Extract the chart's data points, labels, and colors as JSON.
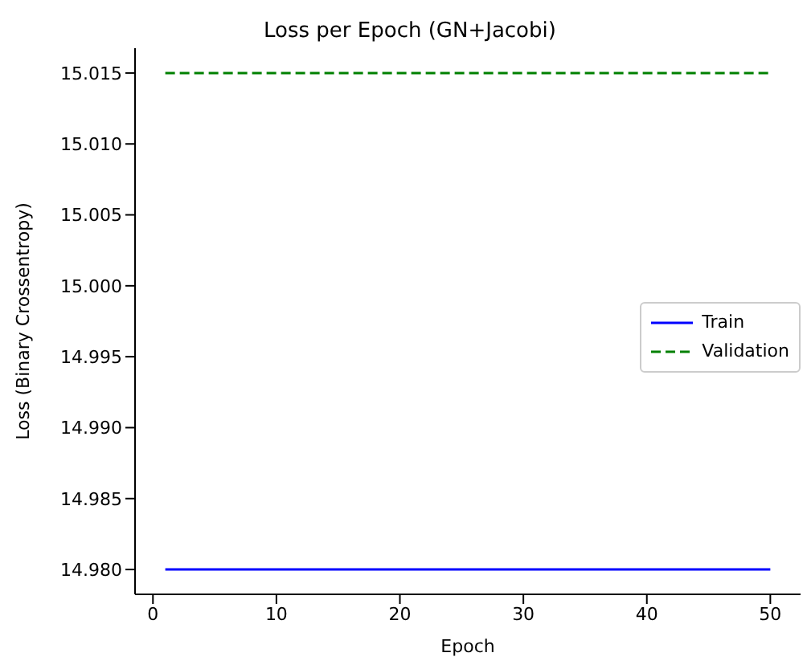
{
  "chart_data": {
    "type": "line",
    "title": "Loss per Epoch (GN+Jacobi)",
    "xlabel": "Epoch",
    "ylabel": "Loss (Binary Crossentropy)",
    "x": [
      1,
      50
    ],
    "series": [
      {
        "name": "Train",
        "color": "#0000ff",
        "values": [
          14.98,
          14.98
        ],
        "line_style": "solid"
      },
      {
        "name": "Validation",
        "color": "#008000",
        "values": [
          15.015,
          15.015
        ],
        "line_style": "dashed"
      }
    ],
    "xlim": [
      -1.45,
      52.45
    ],
    "xticks": [
      0,
      10,
      20,
      30,
      40,
      50
    ],
    "ylim": [
      14.97825,
      15.01675
    ],
    "yticks": [
      {
        "value": 14.98,
        "label": "14.980"
      },
      14.985,
      {
        "value": 14.99,
        "label": "14.990"
      },
      14.995,
      {
        "value": 15,
        "label": "15.000"
      },
      15.005,
      {
        "value": 15.01,
        "label": "15.010"
      },
      15.015
    ],
    "grid": false,
    "legend": "right",
    "marker": "none"
  }
}
